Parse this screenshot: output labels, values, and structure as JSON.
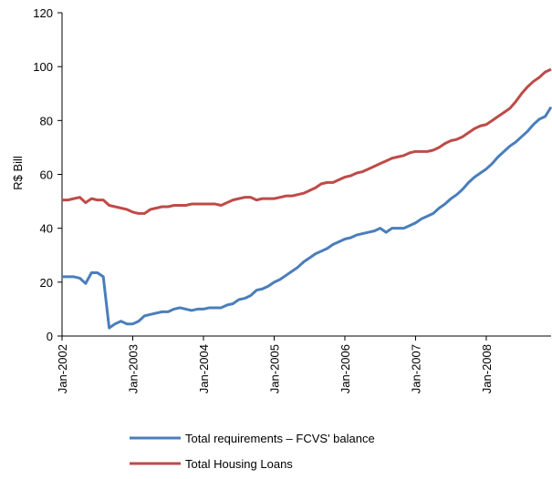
{
  "chart_data": {
    "type": "line",
    "y_label": "R$ Bill",
    "categories": [
      "Jan-2002",
      null,
      null,
      null,
      null,
      null,
      null,
      null,
      null,
      null,
      null,
      null,
      "Jan-2003",
      null,
      null,
      null,
      null,
      null,
      null,
      null,
      null,
      null,
      null,
      null,
      "Jan-2004",
      null,
      null,
      null,
      null,
      null,
      null,
      null,
      null,
      null,
      null,
      null,
      "Jan-2005",
      null,
      null,
      null,
      null,
      null,
      null,
      null,
      null,
      null,
      null,
      null,
      "Jan-2006",
      null,
      null,
      null,
      null,
      null,
      null,
      null,
      null,
      null,
      null,
      null,
      "Jan-2007",
      null,
      null,
      null,
      null,
      null,
      null,
      null,
      null,
      null,
      null,
      null,
      "Jan-2008",
      null,
      null,
      null,
      null,
      null,
      null,
      null,
      null,
      null,
      null,
      null
    ],
    "series": [
      {
        "name": "Total requirements – FCVS' balance",
        "color": "#4a7ebb",
        "values": [
          22,
          22,
          22,
          21.5,
          19.5,
          23.5,
          23.5,
          22,
          3,
          4.5,
          5.5,
          4.5,
          4.5,
          5.5,
          7.5,
          8,
          8.5,
          9,
          9,
          10,
          10.5,
          10,
          9.5,
          10,
          10,
          10.5,
          10.5,
          10.5,
          11.5,
          12,
          13.5,
          14,
          15,
          17,
          17.5,
          18.5,
          20,
          21,
          22.5,
          24,
          25.5,
          27.5,
          29,
          30.5,
          31.5,
          32.5,
          34,
          35,
          36,
          36.5,
          37.5,
          38,
          38.5,
          39,
          40,
          38.5,
          40,
          40,
          40,
          41,
          42,
          43.5,
          44.5,
          45.5,
          47.5,
          49,
          51,
          52.5,
          54.5,
          57,
          59,
          60.5,
          62,
          64,
          66.5,
          68.5,
          70.5,
          72,
          74,
          76,
          78.5,
          80.5,
          81.5,
          85
        ]
      },
      {
        "name": "Total Housing Loans",
        "color": "#be4b48",
        "values": [
          50.5,
          50.5,
          51,
          51.5,
          49.5,
          51,
          50.5,
          50.5,
          48.5,
          48,
          47.5,
          47,
          46,
          45.5,
          45.5,
          47,
          47.5,
          48,
          48,
          48.5,
          48.5,
          48.5,
          49,
          49,
          49,
          49,
          49,
          48.5,
          49.5,
          50.5,
          51,
          51.5,
          51.5,
          50.5,
          51,
          51,
          51,
          51.5,
          52,
          52,
          52.5,
          53,
          54,
          55,
          56.5,
          57,
          57,
          58,
          59,
          59.5,
          60.5,
          61,
          62,
          63,
          64,
          65,
          66,
          66.5,
          67,
          68,
          68.5,
          68.5,
          68.5,
          69,
          70,
          71.5,
          72.5,
          73,
          74,
          75.5,
          77,
          78,
          78.5,
          80,
          81.5,
          83,
          84.5,
          87,
          90,
          92.5,
          94.5,
          96,
          98,
          99
        ]
      }
    ],
    "ylim": [
      0,
      120
    ],
    "yticks": [
      0,
      20,
      40,
      60,
      80,
      100,
      120
    ],
    "grid": false
  }
}
